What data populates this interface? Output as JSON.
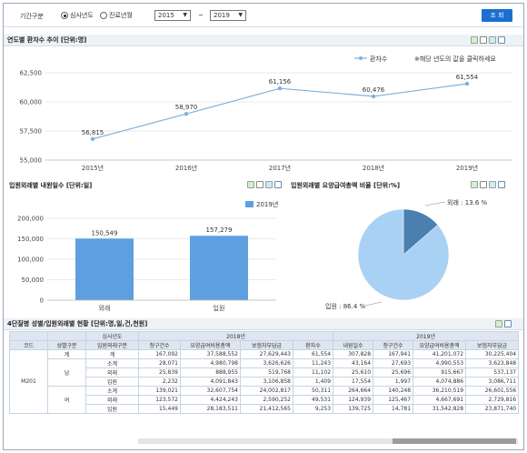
{
  "filter": {
    "period_label": "기간구분",
    "radio_1": "심사년도",
    "radio_2": "진료년월",
    "from_year": "2015",
    "to_year": "2019",
    "tilde": "~",
    "search_button": "조 회"
  },
  "line_panel": {
    "title": "연도별 환자수 추이 [단위:명]",
    "legend": "환자수",
    "hint": "※해당 년도의 값을 클릭하세요"
  },
  "bar_panel": {
    "title": "입원외래별 내원일수 [단위:일]",
    "legend": "2019년"
  },
  "pie_panel": {
    "title": "입원외래별 요양급여총액 비율 [단위:%]",
    "label_out": "외래 : 13.6 %",
    "label_in": "입원 : 86.4 %"
  },
  "table_panel": {
    "title": "4단질병 성별/입원외래별 현황 [단위:명,일,건,천원]",
    "h_code": "코드",
    "h_sex": "성별구분",
    "h_year_label": "심사년도",
    "h_type": "입원외래구분",
    "h_2018": "2018년",
    "h_2019": "2019년",
    "cols": [
      "청구건수",
      "요양급여비용총액",
      "보험자부담금",
      "환자수",
      "내원일수",
      "청구건수",
      "요양급여비용총액",
      "보험자부담금"
    ],
    "code": "M201",
    "rows": [
      {
        "sex": "계",
        "type": "계",
        "v": [
          "167,092",
          "37,588,552",
          "27,629,443",
          "61,554",
          "307,828",
          "167,941",
          "41,201,072",
          "30,225,404"
        ]
      },
      {
        "sex": "남",
        "type": "소계",
        "v": [
          "28,071",
          "4,980,798",
          "3,626,626",
          "11,243",
          "43,164",
          "27,693",
          "4,990,553",
          "3,623,848"
        ]
      },
      {
        "sex": "남",
        "type": "외래",
        "v": [
          "25,839",
          "888,955",
          "519,768",
          "11,102",
          "25,610",
          "25,696",
          "915,667",
          "537,137"
        ]
      },
      {
        "sex": "남",
        "type": "입원",
        "v": [
          "2,232",
          "4,091,843",
          "3,106,858",
          "1,409",
          "17,554",
          "1,997",
          "4,074,886",
          "3,086,711"
        ]
      },
      {
        "sex": "여",
        "type": "소계",
        "v": [
          "139,021",
          "32,607,754",
          "24,002,817",
          "50,311",
          "264,664",
          "140,248",
          "36,210,519",
          "26,601,556"
        ]
      },
      {
        "sex": "여",
        "type": "외래",
        "v": [
          "123,572",
          "4,424,243",
          "2,590,252",
          "49,531",
          "124,939",
          "125,467",
          "4,667,691",
          "2,729,816"
        ]
      },
      {
        "sex": "여",
        "type": "입원",
        "v": [
          "15,449",
          "28,183,511",
          "21,412,565",
          "9,253",
          "139,725",
          "14,781",
          "31,542,828",
          "23,871,740"
        ]
      }
    ]
  },
  "chart_data": [
    {
      "type": "line",
      "categories": [
        "2015년",
        "2016년",
        "2017년",
        "2018년",
        "2019년"
      ],
      "series": [
        {
          "name": "환자수",
          "values": [
            56815,
            58970,
            61156,
            60476,
            61554
          ]
        }
      ],
      "value_labels": [
        "56,815",
        "58,970",
        "61,156",
        "60,476",
        "61,554"
      ],
      "ylim": [
        55000,
        62500
      ],
      "yticks": [
        55000,
        57500,
        60000,
        62500
      ],
      "ytick_labels": [
        "55,000",
        "57,500",
        "60,000",
        "62,500"
      ],
      "color": "#7fb2df",
      "grid": true,
      "legend_position": "top-right"
    },
    {
      "type": "bar",
      "categories": [
        "외래",
        "입원"
      ],
      "series": [
        {
          "name": "2019년",
          "values": [
            150549,
            157279
          ]
        }
      ],
      "value_labels": [
        "150,549",
        "157,279"
      ],
      "ylim": [
        0,
        200000
      ],
      "yticks": [
        0,
        50000,
        100000,
        150000,
        200000
      ],
      "ytick_labels": [
        "0",
        "50,000",
        "100,000",
        "150,000",
        "200,000"
      ],
      "color": "#5da0e0",
      "grid": true,
      "legend_position": "top"
    },
    {
      "type": "pie",
      "labels": [
        "외래",
        "입원"
      ],
      "values": [
        13.6,
        86.4
      ],
      "colors": [
        "#4a7fb0",
        "#a9d1f3"
      ]
    }
  ]
}
